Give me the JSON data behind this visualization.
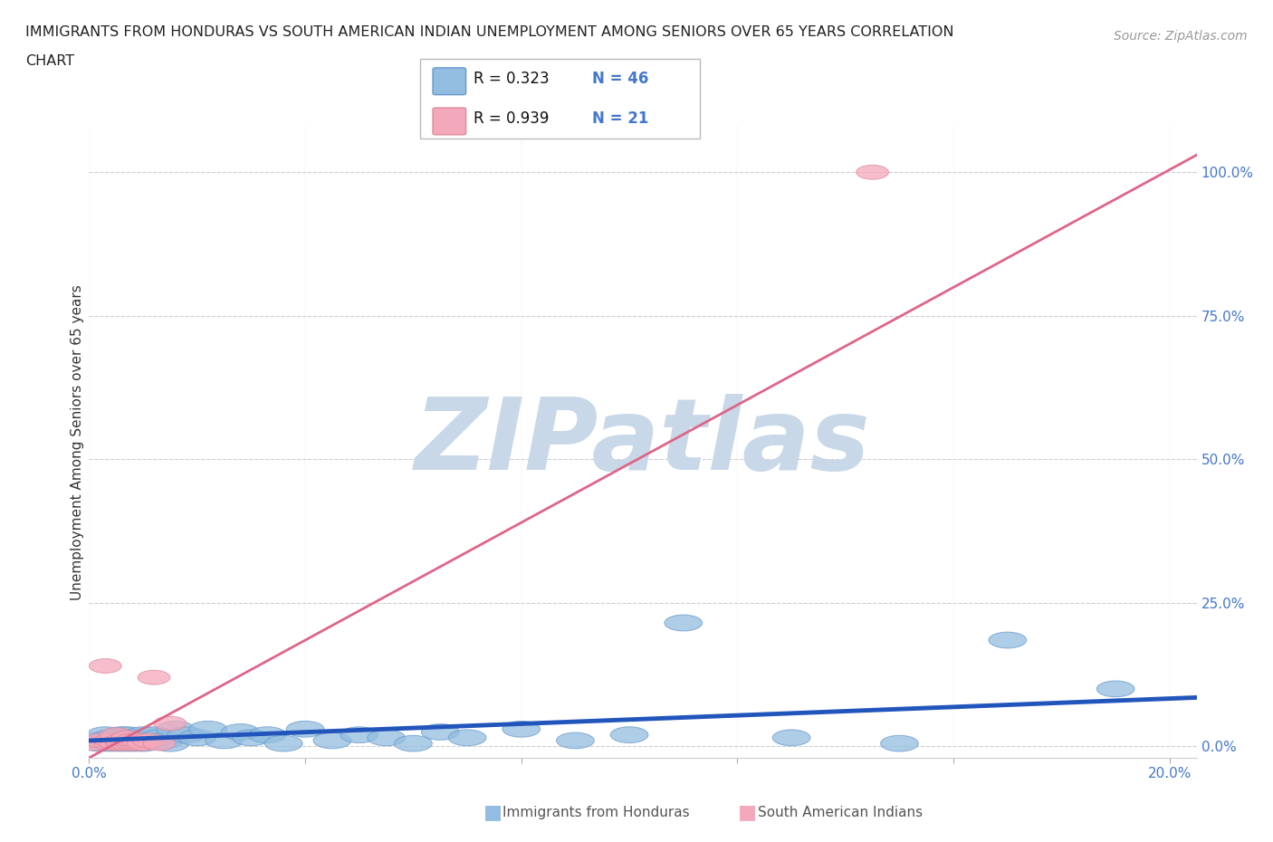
{
  "title_line1": "IMMIGRANTS FROM HONDURAS VS SOUTH AMERICAN INDIAN UNEMPLOYMENT AMONG SENIORS OVER 65 YEARS CORRELATION",
  "title_line2": "CHART",
  "source_text": "Source: ZipAtlas.com",
  "ylabel": "Unemployment Among Seniors over 65 years",
  "xlim": [
    0.0,
    0.205
  ],
  "ylim": [
    -0.02,
    1.08
  ],
  "yticks_right": [
    0.0,
    0.25,
    0.5,
    0.75,
    1.0
  ],
  "ytick_right_labels": [
    "0.0%",
    "25.0%",
    "50.0%",
    "75.0%",
    "100.0%"
  ],
  "grid_color": "#cccccc",
  "background_color": "#ffffff",
  "watermark_text": "ZIPatlas",
  "watermark_color": "#c8d8e8",
  "blue_color": "#93bde0",
  "blue_edge_color": "#6699cc",
  "pink_color": "#f4a8bc",
  "pink_edge_color": "#dd8899",
  "blue_line_color": "#2255bb",
  "pink_line_color": "#dd6688",
  "legend_R_blue": "0.323",
  "legend_N_blue": "46",
  "legend_R_pink": "0.939",
  "legend_N_pink": "21",
  "blue_scatter_x": [
    0.001,
    0.002,
    0.003,
    0.003,
    0.004,
    0.004,
    0.005,
    0.005,
    0.006,
    0.006,
    0.007,
    0.007,
    0.008,
    0.008,
    0.009,
    0.01,
    0.01,
    0.011,
    0.012,
    0.013,
    0.014,
    0.015,
    0.016,
    0.018,
    0.02,
    0.022,
    0.025,
    0.028,
    0.03,
    0.033,
    0.036,
    0.04,
    0.045,
    0.05,
    0.055,
    0.06,
    0.065,
    0.07,
    0.08,
    0.09,
    0.1,
    0.11,
    0.13,
    0.15,
    0.17,
    0.19
  ],
  "blue_scatter_y": [
    0.01,
    0.005,
    0.02,
    0.01,
    0.015,
    0.005,
    0.01,
    0.015,
    0.02,
    0.005,
    0.01,
    0.02,
    0.005,
    0.015,
    0.01,
    0.02,
    0.005,
    0.01,
    0.02,
    0.015,
    0.01,
    0.005,
    0.03,
    0.02,
    0.015,
    0.03,
    0.01,
    0.025,
    0.015,
    0.02,
    0.005,
    0.03,
    0.01,
    0.02,
    0.015,
    0.005,
    0.025,
    0.015,
    0.03,
    0.01,
    0.02,
    0.215,
    0.015,
    0.005,
    0.185,
    0.1
  ],
  "pink_scatter_x": [
    0.001,
    0.002,
    0.003,
    0.004,
    0.004,
    0.005,
    0.005,
    0.006,
    0.006,
    0.007,
    0.007,
    0.008,
    0.008,
    0.009,
    0.009,
    0.01,
    0.011,
    0.012,
    0.013,
    0.015,
    0.145
  ],
  "pink_scatter_y": [
    0.005,
    0.01,
    0.14,
    0.005,
    0.01,
    0.005,
    0.02,
    0.005,
    0.01,
    0.005,
    0.015,
    0.005,
    0.01,
    0.005,
    0.01,
    0.005,
    0.01,
    0.12,
    0.005,
    0.04,
    1.0
  ],
  "pink_trend_x0": 0.0,
  "pink_trend_y0": -0.02,
  "pink_trend_x1": 0.205,
  "pink_trend_y1": 1.03,
  "blue_trend_x0": 0.0,
  "blue_trend_y0": 0.01,
  "blue_trend_x1": 0.205,
  "blue_trend_y1": 0.085
}
